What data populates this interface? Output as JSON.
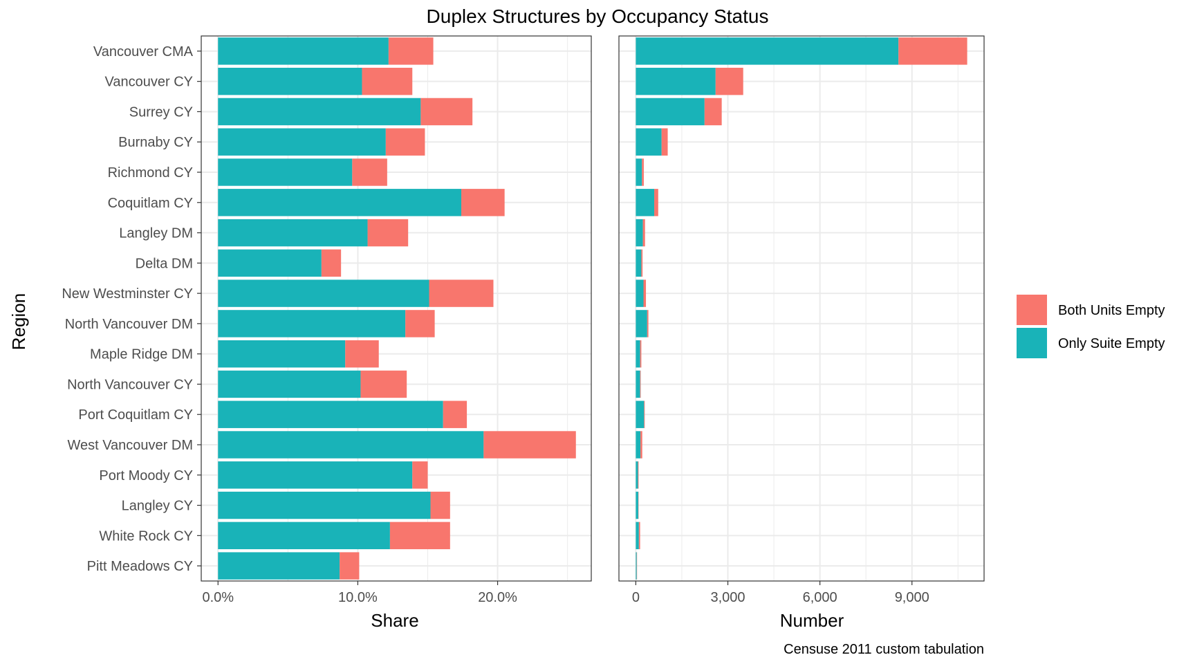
{
  "title": "Duplex Structures by Occupancy Status",
  "caption": "Censuse 2011 custom tabulation",
  "colors": {
    "Both Units Empty": "#F8766D",
    "Only Suite Empty": "#19B3B8",
    "grid": "#EBEBEB",
    "panel_border": "#333333"
  },
  "legend": [
    {
      "name": "Both Units Empty",
      "color": "#F8766D"
    },
    {
      "name": "Only Suite Empty",
      "color": "#19B3B8"
    }
  ],
  "chart_data": [
    {
      "type": "bar",
      "orientation": "horizontal",
      "stacked": true,
      "ylabel": "Region",
      "xlabel": "Share",
      "xlim": [
        -0.012,
        0.267
      ],
      "xticks": [
        0,
        0.1,
        0.2
      ],
      "xtick_labels": [
        "0.0%",
        "10.0%",
        "20.0%"
      ],
      "grid": true,
      "legend_position": "right",
      "categories": [
        "Vancouver CMA",
        "Vancouver CY",
        "Surrey CY",
        "Burnaby CY",
        "Richmond CY",
        "Coquitlam CY",
        "Langley DM",
        "Delta DM",
        "New Westminster CY",
        "North Vancouver DM",
        "Maple Ridge DM",
        "North Vancouver CY",
        "Port Coquitlam CY",
        "West Vancouver DM",
        "Port Moody CY",
        "Langley CY",
        "White Rock CY",
        "Pitt Meadows CY"
      ],
      "series": [
        {
          "name": "Only Suite Empty",
          "values": [
            0.122,
            0.103,
            0.145,
            0.12,
            0.096,
            0.174,
            0.107,
            0.074,
            0.151,
            0.134,
            0.091,
            0.102,
            0.161,
            0.19,
            0.139,
            0.152,
            0.123,
            0.087
          ]
        },
        {
          "name": "Both Units Empty",
          "values": [
            0.032,
            0.036,
            0.037,
            0.028,
            0.025,
            0.031,
            0.029,
            0.014,
            0.046,
            0.021,
            0.024,
            0.033,
            0.017,
            0.066,
            0.011,
            0.014,
            0.043,
            0.014
          ]
        }
      ]
    },
    {
      "type": "bar",
      "orientation": "horizontal",
      "stacked": true,
      "xlabel": "Number",
      "xlim": [
        -550,
        11350
      ],
      "xticks": [
        0,
        3000,
        6000,
        9000
      ],
      "xtick_labels": [
        "0",
        "3,000",
        "6,000",
        "9,000"
      ],
      "grid": true,
      "categories": [
        "Vancouver CMA",
        "Vancouver CY",
        "Surrey CY",
        "Burnaby CY",
        "Richmond CY",
        "Coquitlam CY",
        "Langley DM",
        "Delta DM",
        "New Westminster CY",
        "North Vancouver DM",
        "Maple Ridge DM",
        "North Vancouver CY",
        "Port Coquitlam CY",
        "West Vancouver DM",
        "Port Moody CY",
        "Langley CY",
        "White Rock CY",
        "Pitt Meadows CY"
      ],
      "series": [
        {
          "name": "Only Suite Empty",
          "values": [
            8560,
            2600,
            2240,
            840,
            200,
            600,
            230,
            180,
            250,
            370,
            140,
            140,
            270,
            150,
            70,
            80,
            100,
            30
          ]
        },
        {
          "name": "Both Units Empty",
          "values": [
            2240,
            900,
            560,
            200,
            60,
            130,
            70,
            40,
            80,
            40,
            40,
            20,
            20,
            60,
            20,
            10,
            40,
            10
          ]
        }
      ]
    }
  ]
}
